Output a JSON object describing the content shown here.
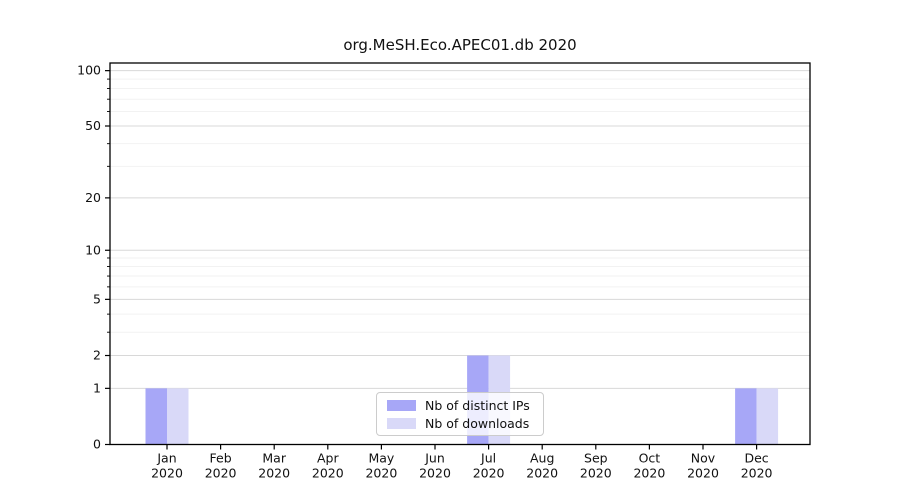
{
  "chart_data": {
    "type": "bar",
    "title": "org.MeSH.Eco.APEC01.db 2020",
    "categories": [
      {
        "month": "Jan",
        "year": "2020"
      },
      {
        "month": "Feb",
        "year": "2020"
      },
      {
        "month": "Mar",
        "year": "2020"
      },
      {
        "month": "Apr",
        "year": "2020"
      },
      {
        "month": "May",
        "year": "2020"
      },
      {
        "month": "Jun",
        "year": "2020"
      },
      {
        "month": "Jul",
        "year": "2020"
      },
      {
        "month": "Aug",
        "year": "2020"
      },
      {
        "month": "Sep",
        "year": "2020"
      },
      {
        "month": "Oct",
        "year": "2020"
      },
      {
        "month": "Nov",
        "year": "2020"
      },
      {
        "month": "Dec",
        "year": "2020"
      }
    ],
    "series": [
      {
        "name": "Nb of distinct IPs",
        "color": "#a7a7f7",
        "values": [
          1,
          0,
          0,
          0,
          0,
          0,
          2,
          0,
          0,
          0,
          0,
          1
        ]
      },
      {
        "name": "Nb of downloads",
        "color": "#d9d9f8",
        "values": [
          1,
          0,
          0,
          0,
          0,
          0,
          2,
          0,
          0,
          0,
          0,
          1
        ]
      }
    ],
    "yscale": "log1p",
    "ylim": [
      0,
      110
    ],
    "yticks_major": [
      0,
      1,
      2,
      5,
      10,
      20,
      50,
      100
    ],
    "yticks_minor": [
      3,
      4,
      6,
      7,
      8,
      9,
      30,
      40,
      60,
      70,
      80,
      90
    ],
    "grid": "horizontal",
    "legend_position": "bottom-center",
    "colors": {
      "axis": "#000000",
      "text": "#111111",
      "grid_major": "#d8d8d8",
      "grid_minor": "#f2f2f2",
      "background": "#ffffff"
    }
  }
}
